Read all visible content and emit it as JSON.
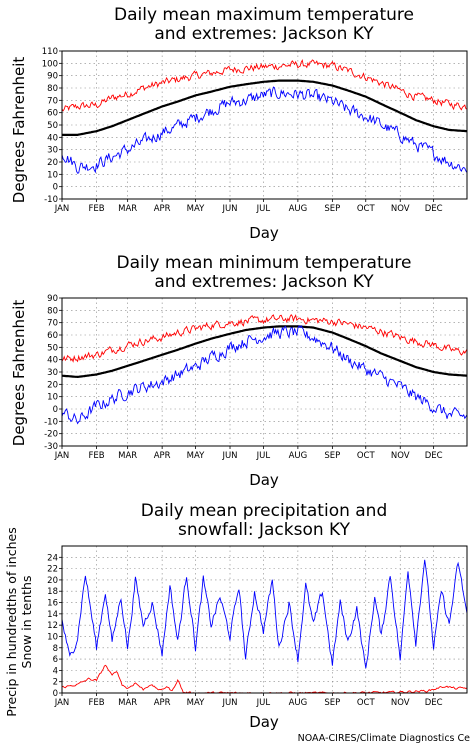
{
  "chart_data": [
    {
      "type": "line",
      "title_line1": "Daily mean maximum temperature",
      "title_line2": "and extremes: Jackson KY",
      "xlabel": "Day",
      "ylabel": "Degrees Fahrenheit",
      "months": [
        "JAN",
        "FEB",
        "MAR",
        "APR",
        "MAY",
        "JUN",
        "JUL",
        "AUG",
        "SEP",
        "OCT",
        "NOV",
        "DEC"
      ],
      "ylim": [
        -10,
        110
      ],
      "yticks": [
        -10,
        0,
        10,
        20,
        30,
        40,
        50,
        60,
        70,
        80,
        90,
        100,
        110
      ],
      "grid": true,
      "series": [
        {
          "color": "#ff0000",
          "anchors_day": [
            1,
            15,
            32,
            46,
            60,
            74,
            91,
            105,
            121,
            135,
            152,
            166,
            182,
            196,
            213,
            227,
            244,
            258,
            274,
            288,
            305,
            319,
            335,
            349,
            365
          ],
          "values": [
            62,
            65,
            66,
            72,
            75,
            80,
            84,
            87,
            90,
            92,
            95,
            96,
            97,
            98,
            99,
            99,
            98,
            94,
            89,
            84,
            78,
            73,
            70,
            67,
            65
          ],
          "noise": 5
        },
        {
          "color": "#000000",
          "anchors_day": [
            1,
            15,
            32,
            46,
            60,
            74,
            91,
            105,
            121,
            135,
            152,
            166,
            182,
            196,
            213,
            227,
            244,
            258,
            274,
            288,
            305,
            319,
            335,
            349,
            365
          ],
          "values": [
            42,
            42,
            45,
            49,
            54,
            59,
            65,
            69,
            74,
            77,
            81,
            83,
            85,
            86,
            86,
            85,
            82,
            78,
            73,
            67,
            60,
            54,
            49,
            46,
            45
          ],
          "noise": 0
        },
        {
          "color": "#0000ff",
          "anchors_day": [
            1,
            15,
            32,
            46,
            60,
            74,
            91,
            105,
            121,
            135,
            152,
            166,
            182,
            196,
            213,
            227,
            244,
            258,
            274,
            288,
            305,
            319,
            335,
            349,
            365
          ],
          "values": [
            28,
            16,
            18,
            24,
            30,
            36,
            44,
            49,
            56,
            62,
            68,
            70,
            74,
            76,
            75,
            73,
            69,
            62,
            57,
            50,
            42,
            34,
            27,
            20,
            14
          ],
          "noise": 8
        }
      ]
    },
    {
      "type": "line",
      "title_line1": "Daily mean minimum temperature",
      "title_line2": "and extremes: Jackson KY",
      "xlabel": "Day",
      "ylabel": "Degrees Fahrenheit",
      "months": [
        "JAN",
        "FEB",
        "MAR",
        "APR",
        "MAY",
        "JUN",
        "JUL",
        "AUG",
        "SEP",
        "OCT",
        "NOV",
        "DEC"
      ],
      "ylim": [
        -30,
        90
      ],
      "yticks": [
        -30,
        -20,
        -10,
        0,
        10,
        20,
        30,
        40,
        50,
        60,
        70,
        80,
        90
      ],
      "grid": true,
      "series": [
        {
          "color": "#ff0000",
          "anchors_day": [
            1,
            15,
            32,
            46,
            60,
            74,
            91,
            105,
            121,
            135,
            152,
            166,
            182,
            196,
            213,
            227,
            244,
            258,
            274,
            288,
            305,
            319,
            335,
            349,
            365
          ],
          "values": [
            40,
            42,
            44,
            48,
            52,
            55,
            58,
            62,
            65,
            68,
            70,
            71,
            72,
            73,
            73,
            72,
            71,
            69,
            66,
            63,
            58,
            55,
            52,
            48,
            46
          ],
          "noise": 5
        },
        {
          "color": "#000000",
          "anchors_day": [
            1,
            15,
            32,
            46,
            60,
            74,
            91,
            105,
            121,
            135,
            152,
            166,
            182,
            196,
            213,
            227,
            244,
            258,
            274,
            288,
            305,
            319,
            335,
            349,
            365
          ],
          "values": [
            27,
            26,
            28,
            31,
            35,
            39,
            44,
            48,
            53,
            57,
            61,
            64,
            66,
            67,
            67,
            66,
            62,
            57,
            51,
            45,
            39,
            34,
            30,
            28,
            27
          ],
          "noise": 0
        },
        {
          "color": "#0000ff",
          "anchors_day": [
            1,
            15,
            32,
            46,
            60,
            74,
            91,
            105,
            121,
            135,
            152,
            166,
            182,
            196,
            213,
            227,
            244,
            258,
            274,
            288,
            305,
            319,
            335,
            349,
            365
          ],
          "values": [
            -2,
            -10,
            2,
            8,
            14,
            18,
            22,
            28,
            34,
            42,
            50,
            55,
            59,
            62,
            62,
            58,
            50,
            40,
            32,
            26,
            18,
            10,
            2,
            -5,
            -6
          ],
          "noise": 8
        }
      ]
    },
    {
      "type": "line",
      "title_line1": "Daily mean precipitation and",
      "title_line2": "snowfall: Jackson KY",
      "xlabel": "Day",
      "ylabel_line1": "Precip in hundredths of inches",
      "ylabel_line2": "Snow in tenths",
      "months": [
        "JAN",
        "FEB",
        "MAR",
        "APR",
        "MAY",
        "JUN",
        "JUL",
        "AUG",
        "SEP",
        "OCT",
        "NOV",
        "DEC"
      ],
      "ylim": [
        0,
        26
      ],
      "yticks": [
        0,
        2,
        4,
        6,
        8,
        10,
        12,
        14,
        16,
        18,
        20,
        22,
        24
      ],
      "grid": true,
      "series": [
        {
          "color": "#0000ff",
          "anchors_day": [
            1,
            8,
            15,
            22,
            32,
            40,
            46,
            54,
            60,
            67,
            74,
            82,
            91,
            98,
            105,
            113,
            121,
            128,
            135,
            143,
            152,
            160,
            166,
            174,
            182,
            190,
            196,
            205,
            213,
            220,
            227,
            235,
            244,
            251,
            258,
            266,
            274,
            282,
            288,
            296,
            305,
            312,
            319,
            327,
            335,
            342,
            349,
            357,
            365
          ],
          "values": [
            13,
            6,
            10,
            21,
            8,
            18,
            9,
            17,
            8,
            20,
            12,
            16,
            7,
            19,
            9,
            21,
            8,
            20,
            12,
            17,
            10,
            19,
            6,
            18,
            11,
            20,
            8,
            16,
            6,
            19,
            12,
            18,
            5,
            16,
            9,
            15,
            4,
            17,
            10,
            21,
            6,
            22,
            9,
            24,
            8,
            18,
            12,
            23,
            14
          ],
          "noise": 1.2
        },
        {
          "color": "#ff0000",
          "anchors_day": [
            1,
            15,
            25,
            32,
            40,
            46,
            50,
            55,
            60,
            67,
            74,
            80,
            90,
            95,
            100,
            105,
            110,
            120,
            150,
            200,
            250,
            300,
            330,
            345,
            355,
            365
          ],
          "values": [
            1,
            1.5,
            2.5,
            2.2,
            5,
            3,
            4,
            1.5,
            0.8,
            1.8,
            0.6,
            1.5,
            0.4,
            1.2,
            0.3,
            2.4,
            0.1,
            0,
            0,
            0,
            0,
            0.1,
            0.4,
            1.2,
            0.8,
            0.9
          ],
          "noise": 0.3
        }
      ]
    }
  ],
  "credit": "NOAA-CIRES/Climate Diagnostics Ce"
}
